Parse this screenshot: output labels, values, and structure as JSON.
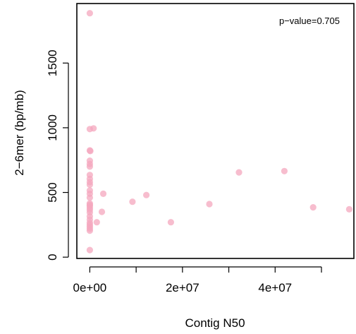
{
  "chart_data": {
    "type": "scatter",
    "title": "",
    "xlabel": "Contig N50",
    "ylabel": "2−6mer (bp/mb)",
    "annotation": "p−value=0.705",
    "xlim": [
      -2800000,
      57000000
    ],
    "ylim": [
      -10,
      1960
    ],
    "x_ticks": [
      {
        "value": 0,
        "label": "0e+00"
      },
      {
        "value": 10000000,
        "label": ""
      },
      {
        "value": 20000000,
        "label": "2e+07"
      },
      {
        "value": 30000000,
        "label": ""
      },
      {
        "value": 40000000,
        "label": "4e+07"
      },
      {
        "value": 50000000,
        "label": ""
      }
    ],
    "y_ticks": [
      {
        "value": 0,
        "label": "0"
      },
      {
        "value": 500,
        "label": "500"
      },
      {
        "value": 1000,
        "label": "1000"
      },
      {
        "value": 1500,
        "label": "1500"
      }
    ],
    "point_color": "#f4a7be",
    "points": [
      {
        "x": 0,
        "y": 1885
      },
      {
        "x": 0,
        "y": 990
      },
      {
        "x": 800000,
        "y": 995
      },
      {
        "x": 0,
        "y": 825
      },
      {
        "x": 100000,
        "y": 820
      },
      {
        "x": 0,
        "y": 745
      },
      {
        "x": 0,
        "y": 720
      },
      {
        "x": 0,
        "y": 700
      },
      {
        "x": 0,
        "y": 635
      },
      {
        "x": 0,
        "y": 605
      },
      {
        "x": 0,
        "y": 580
      },
      {
        "x": 0,
        "y": 560
      },
      {
        "x": 0,
        "y": 515
      },
      {
        "x": 0,
        "y": 490
      },
      {
        "x": 0,
        "y": 460
      },
      {
        "x": 0,
        "y": 415
      },
      {
        "x": 0,
        "y": 405
      },
      {
        "x": 0,
        "y": 395
      },
      {
        "x": 0,
        "y": 380
      },
      {
        "x": 0,
        "y": 365
      },
      {
        "x": 0,
        "y": 345
      },
      {
        "x": 0,
        "y": 315
      },
      {
        "x": 0,
        "y": 290
      },
      {
        "x": 0,
        "y": 265
      },
      {
        "x": 0,
        "y": 250
      },
      {
        "x": 0,
        "y": 235
      },
      {
        "x": 0,
        "y": 220
      },
      {
        "x": 0,
        "y": 205
      },
      {
        "x": 0,
        "y": 55
      },
      {
        "x": 1500000,
        "y": 270
      },
      {
        "x": 2600000,
        "y": 350
      },
      {
        "x": 2900000,
        "y": 490
      },
      {
        "x": 9200000,
        "y": 428
      },
      {
        "x": 12200000,
        "y": 480
      },
      {
        "x": 17500000,
        "y": 270
      },
      {
        "x": 25800000,
        "y": 410
      },
      {
        "x": 32200000,
        "y": 655
      },
      {
        "x": 42000000,
        "y": 665
      },
      {
        "x": 48200000,
        "y": 385
      },
      {
        "x": 56000000,
        "y": 370
      }
    ]
  }
}
